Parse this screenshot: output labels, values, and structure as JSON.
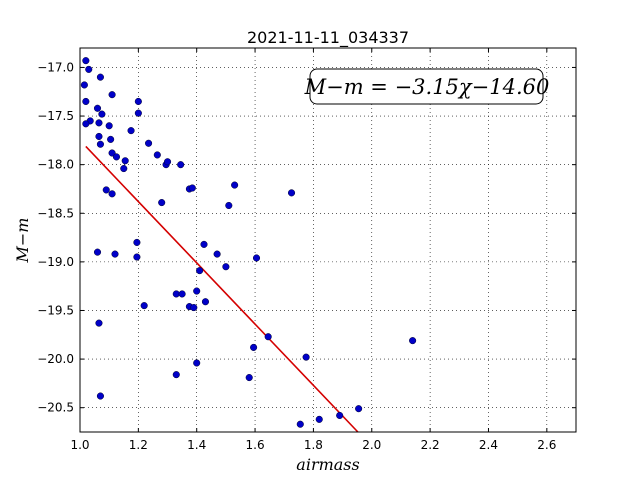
{
  "chart_data": {
    "type": "scatter",
    "title": "2021-11-11_034337",
    "xlabel": "airmass",
    "ylabel": "M−m",
    "xlim": [
      1.0,
      2.7
    ],
    "ylim": [
      -20.75,
      -16.8
    ],
    "y_inverted": true,
    "grid": true,
    "x_ticks": [
      1.0,
      1.2,
      1.4,
      1.6,
      1.8,
      2.0,
      2.2,
      2.4,
      2.6
    ],
    "x_tick_labels": [
      "1.0",
      "1.2",
      "1.4",
      "1.6",
      "1.8",
      "2.0",
      "2.2",
      "2.4",
      "2.6"
    ],
    "y_ticks": [
      -17.0,
      -17.5,
      -18.0,
      -18.5,
      -19.0,
      -19.5,
      -20.0,
      -20.5
    ],
    "y_tick_labels": [
      "−17.0",
      "−17.5",
      "−18.0",
      "−18.5",
      "−19.0",
      "−19.5",
      "−20.0",
      "−20.5"
    ],
    "annotation": "M−m = −3.15χ−14.60",
    "fit_line": {
      "slope": -3.15,
      "intercept": -14.6,
      "x_range": [
        1.02,
        1.96
      ],
      "color": "#d40000"
    },
    "point_color": "#0000c8",
    "points": [
      [
        1.02,
        -16.93
      ],
      [
        1.03,
        -17.02
      ],
      [
        1.015,
        -17.18
      ],
      [
        1.02,
        -17.35
      ],
      [
        1.07,
        -17.1
      ],
      [
        1.035,
        -17.55
      ],
      [
        1.02,
        -17.58
      ],
      [
        1.06,
        -17.42
      ],
      [
        1.075,
        -17.48
      ],
      [
        1.065,
        -17.57
      ],
      [
        1.1,
        -17.6
      ],
      [
        1.11,
        -17.28
      ],
      [
        1.065,
        -17.71
      ],
      [
        1.07,
        -17.79
      ],
      [
        1.105,
        -17.74
      ],
      [
        1.11,
        -17.88
      ],
      [
        1.125,
        -17.92
      ],
      [
        1.15,
        -18.04
      ],
      [
        1.155,
        -17.96
      ],
      [
        1.175,
        -17.65
      ],
      [
        1.2,
        -17.35
      ],
      [
        1.2,
        -17.47
      ],
      [
        1.235,
        -17.78
      ],
      [
        1.265,
        -17.9
      ],
      [
        1.295,
        -18.0
      ],
      [
        1.3,
        -17.97
      ],
      [
        1.345,
        -18.0
      ],
      [
        1.09,
        -18.26
      ],
      [
        1.11,
        -18.3
      ],
      [
        1.28,
        -18.39
      ],
      [
        1.375,
        -18.25
      ],
      [
        1.385,
        -18.24
      ],
      [
        1.51,
        -18.42
      ],
      [
        1.53,
        -18.21
      ],
      [
        1.725,
        -18.29
      ],
      [
        1.06,
        -18.9
      ],
      [
        1.12,
        -18.92
      ],
      [
        1.195,
        -18.8
      ],
      [
        1.195,
        -18.95
      ],
      [
        1.425,
        -18.82
      ],
      [
        1.47,
        -18.92
      ],
      [
        1.5,
        -19.05
      ],
      [
        1.605,
        -18.96
      ],
      [
        1.41,
        -19.09
      ],
      [
        1.22,
        -19.45
      ],
      [
        1.33,
        -19.33
      ],
      [
        1.35,
        -19.33
      ],
      [
        1.375,
        -19.46
      ],
      [
        1.39,
        -19.47
      ],
      [
        1.4,
        -19.3
      ],
      [
        1.43,
        -19.41
      ],
      [
        1.065,
        -19.63
      ],
      [
        1.645,
        -19.77
      ],
      [
        1.595,
        -19.88
      ],
      [
        1.775,
        -19.98
      ],
      [
        1.33,
        -20.16
      ],
      [
        1.4,
        -20.04
      ],
      [
        1.58,
        -20.19
      ],
      [
        2.14,
        -19.81
      ],
      [
        1.07,
        -20.38
      ],
      [
        1.89,
        -20.58
      ],
      [
        1.955,
        -20.51
      ],
      [
        1.82,
        -20.62
      ],
      [
        1.755,
        -20.67
      ]
    ]
  }
}
